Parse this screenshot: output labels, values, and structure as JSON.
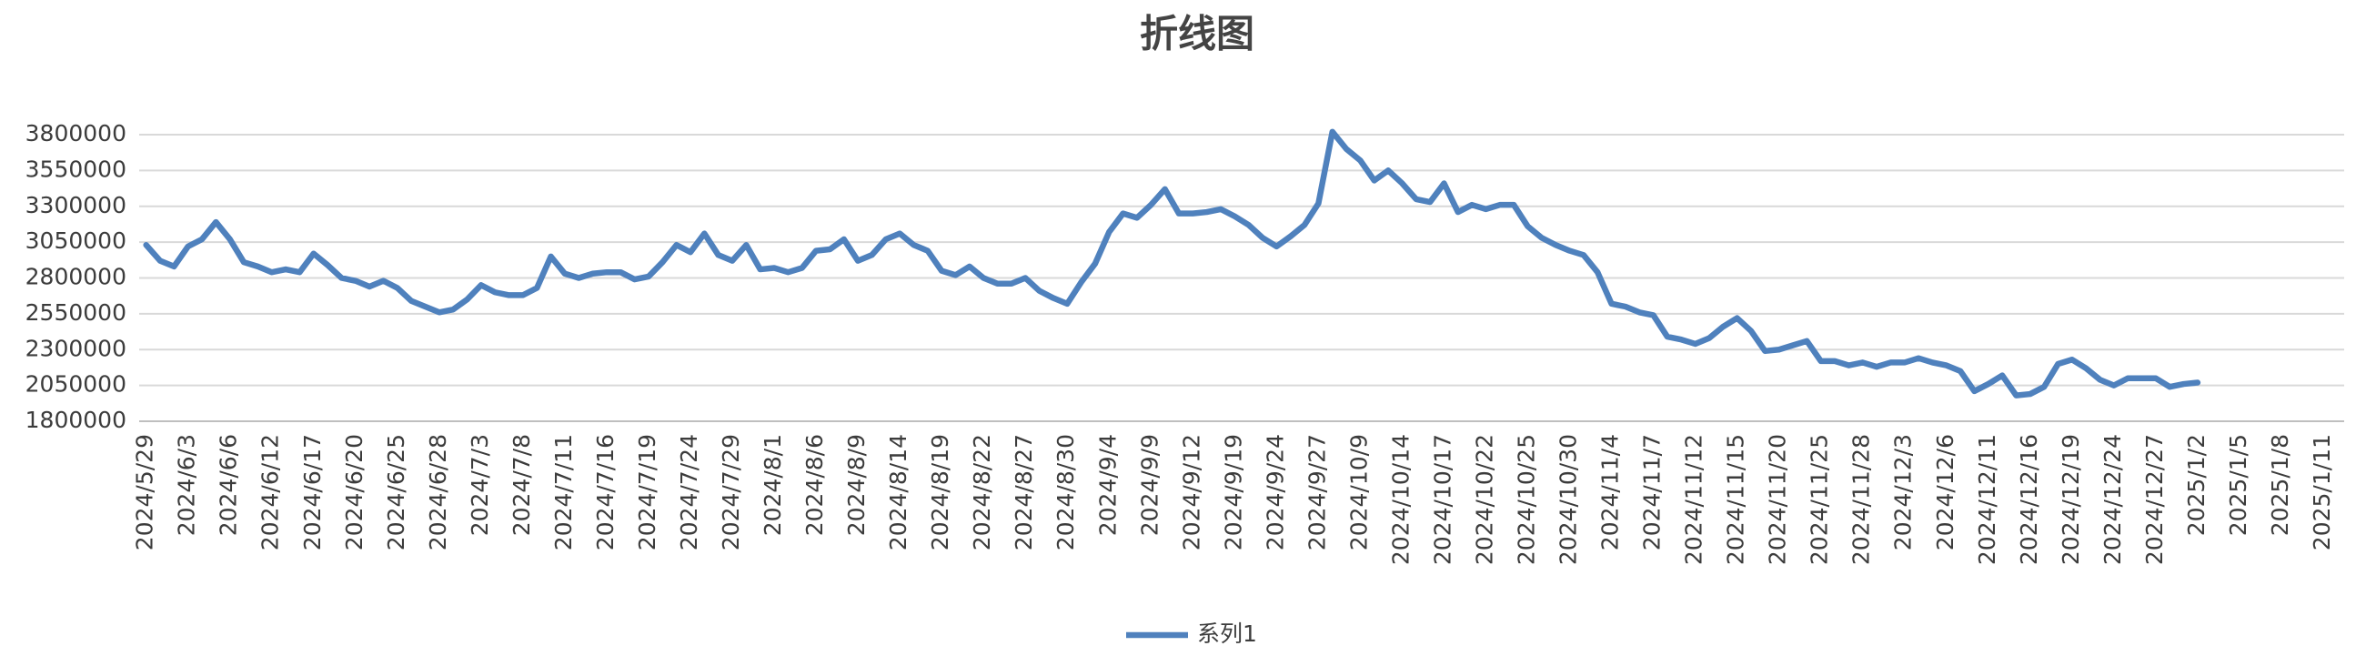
{
  "chart_data": {
    "type": "line",
    "title": "折线图",
    "categories": [
      "2024/5/29",
      null,
      null,
      "2024/6/3",
      null,
      null,
      "2024/6/6",
      null,
      null,
      "2024/6/12",
      null,
      null,
      "2024/6/17",
      null,
      null,
      "2024/6/20",
      null,
      null,
      "2024/6/25",
      null,
      null,
      "2024/6/28",
      null,
      null,
      "2024/7/3",
      null,
      null,
      "2024/7/8",
      null,
      null,
      "2024/7/11",
      null,
      null,
      "2024/7/16",
      null,
      null,
      "2024/7/19",
      null,
      null,
      "2024/7/24",
      null,
      null,
      "2024/7/29",
      null,
      null,
      "2024/8/1",
      null,
      null,
      "2024/8/6",
      null,
      null,
      "2024/8/9",
      null,
      null,
      "2024/8/14",
      null,
      null,
      "2024/8/19",
      null,
      null,
      "2024/8/22",
      null,
      null,
      "2024/8/27",
      null,
      null,
      "2024/8/30",
      null,
      null,
      "2024/9/4",
      null,
      null,
      "2024/9/9",
      null,
      null,
      "2024/9/12",
      null,
      null,
      "2024/9/19",
      null,
      null,
      "2024/9/24",
      null,
      null,
      "2024/9/27",
      null,
      null,
      "2024/10/9",
      null,
      null,
      "2024/10/14",
      null,
      null,
      "2024/10/17",
      null,
      null,
      "2024/10/22",
      null,
      null,
      "2024/10/25",
      null,
      null,
      "2024/10/30",
      null,
      null,
      "2024/11/4",
      null,
      null,
      "2024/11/7",
      null,
      null,
      "2024/11/12",
      null,
      null,
      "2024/11/15",
      null,
      null,
      "2024/11/20",
      null,
      null,
      "2024/11/25",
      null,
      null,
      "2024/11/28",
      null,
      null,
      "2024/12/3",
      null,
      null,
      "2024/12/6",
      null,
      null,
      "2024/12/11",
      null,
      null,
      "2024/12/16",
      null,
      null,
      "2024/12/19",
      null,
      null,
      "2024/12/24",
      null,
      null,
      "2024/12/27",
      null,
      null,
      "2025/1/2",
      null,
      null,
      "2025/1/5",
      null,
      null,
      "2025/1/8",
      null,
      null,
      "2025/1/11",
      null
    ],
    "series": [
      {
        "name": "系列1",
        "color": "#4f81bd",
        "values": [
          3030000,
          2920000,
          2880000,
          3020000,
          3070000,
          3190000,
          3070000,
          2910000,
          2880000,
          2840000,
          2860000,
          2840000,
          2970000,
          2890000,
          2800000,
          2780000,
          2740000,
          2780000,
          2730000,
          2640000,
          2600000,
          2560000,
          2580000,
          2650000,
          2750000,
          2700000,
          2680000,
          2680000,
          2730000,
          2950000,
          2830000,
          2800000,
          2830000,
          2840000,
          2840000,
          2790000,
          2810000,
          2910000,
          3030000,
          2980000,
          3110000,
          2960000,
          2920000,
          3030000,
          2860000,
          2870000,
          2840000,
          2870000,
          2990000,
          3000000,
          3070000,
          2920000,
          2960000,
          3070000,
          3110000,
          3030000,
          2990000,
          2850000,
          2820000,
          2880000,
          2800000,
          2760000,
          2760000,
          2800000,
          2710000,
          2660000,
          2620000,
          2770000,
          2900000,
          3120000,
          3250000,
          3220000,
          3310000,
          3420000,
          3250000,
          3250000,
          3260000,
          3280000,
          3230000,
          3170000,
          3080000,
          3020000,
          3090000,
          3170000,
          3320000,
          3820000,
          3700000,
          3620000,
          3480000,
          3550000,
          3460000,
          3350000,
          3330000,
          3460000,
          3260000,
          3310000,
          3280000,
          3310000,
          3310000,
          3160000,
          3080000,
          3030000,
          2990000,
          2960000,
          2840000,
          2620000,
          2600000,
          2560000,
          2540000,
          2390000,
          2370000,
          2340000,
          2380000,
          2460000,
          2520000,
          2430000,
          2290000,
          2300000,
          2330000,
          2360000,
          2220000,
          2220000,
          2190000,
          2210000,
          2180000,
          2210000,
          2210000,
          2240000,
          2210000,
          2190000,
          2150000,
          2010000,
          2060000,
          2120000,
          1980000,
          1990000,
          2040000,
          2200000,
          2230000,
          2170000,
          2090000,
          2050000,
          2100000,
          2100000,
          2100000,
          2040000,
          2060000,
          2070000,
          null,
          null,
          null,
          null,
          null,
          null,
          null,
          null,
          null,
          null
        ]
      }
    ],
    "ylim": [
      1800000,
      3800000
    ],
    "yticks": [
      1800000,
      2050000,
      2300000,
      2550000,
      2800000,
      3050000,
      3300000,
      3550000,
      3800000
    ],
    "grid": true,
    "legend": "bottom"
  }
}
